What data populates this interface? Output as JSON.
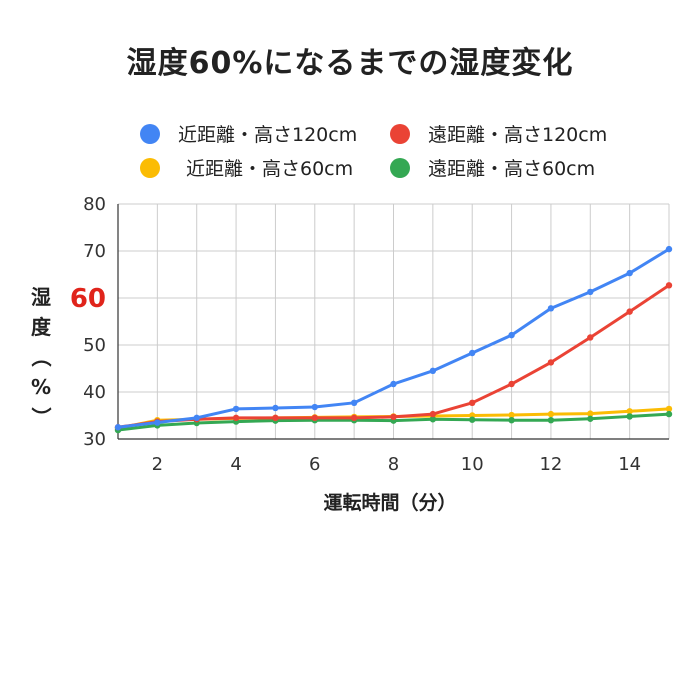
{
  "colors": {
    "blue": "#4285F4",
    "red": "#EA4335",
    "yellow": "#FBBC04",
    "green": "#34A853",
    "highlight": "#e0241b"
  },
  "chart_data": {
    "type": "line",
    "title": "湿度60%になるまでの湿度変化",
    "xlabel": "運転時間（分）",
    "ylabel": [
      "湿",
      "度",
      "（",
      "%",
      "）"
    ],
    "x": [
      1,
      2,
      3,
      4,
      5,
      6,
      7,
      8,
      9,
      10,
      11,
      12,
      13,
      14,
      15
    ],
    "xlim": [
      1,
      15
    ],
    "ylim": [
      30,
      80
    ],
    "xticks": [
      2,
      4,
      6,
      8,
      10,
      12,
      14
    ],
    "yticks": [
      30,
      40,
      50,
      60,
      70,
      80
    ],
    "highlight_ytick": 60,
    "grid": true,
    "legend_position": "top",
    "series": [
      {
        "name": "近距離・高さ120cm",
        "color": "#4285F4",
        "values": [
          32.5,
          33.5,
          34.5,
          36.4,
          36.6,
          36.8,
          37.7,
          41.7,
          44.5,
          48.3,
          52.1,
          57.8,
          61.3,
          65.3,
          70.4
        ]
      },
      {
        "name": "遠距離・高さ120cm",
        "color": "#EA4335",
        "values": [
          32.5,
          33.7,
          34.2,
          34.5,
          34.5,
          34.5,
          34.5,
          34.7,
          35.3,
          37.7,
          41.7,
          46.3,
          51.6,
          57.1,
          62.7
        ]
      },
      {
        "name": "近距離・高さ60cm",
        "color": "#FBBC04",
        "values": [
          32.3,
          34.0,
          34.2,
          34.4,
          34.5,
          34.6,
          34.7,
          34.8,
          34.9,
          35.0,
          35.1,
          35.3,
          35.4,
          35.9,
          36.4
        ]
      },
      {
        "name": "遠距離・高さ60cm",
        "color": "#34A853",
        "values": [
          31.9,
          32.9,
          33.4,
          33.7,
          33.9,
          34.0,
          34.0,
          33.9,
          34.2,
          34.1,
          34.0,
          34.0,
          34.3,
          34.8,
          35.3
        ]
      }
    ]
  }
}
